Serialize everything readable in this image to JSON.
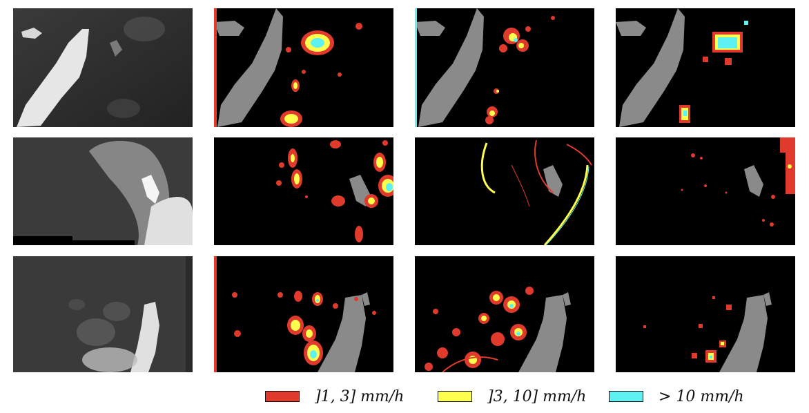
{
  "figure": {
    "columns": 4,
    "rows": 3,
    "panel_types": [
      "sar-image",
      "rain-map-a",
      "rain-map-b",
      "rain-map-c"
    ]
  },
  "colors": {
    "background": "#000000",
    "land": "#8a8a8a",
    "rain_low": "#e03a2c",
    "rain_mid": "#ffff4d",
    "rain_high": "#5ef1f2"
  },
  "legend": {
    "items": [
      {
        "label": "]1, 3] mm/h",
        "color": "#e03a2c"
      },
      {
        "label": "]3, 10] mm/h",
        "color": "#ffff4d"
      },
      {
        "label": "> 10 mm/h",
        "color": "#5ef1f2"
      }
    ]
  }
}
